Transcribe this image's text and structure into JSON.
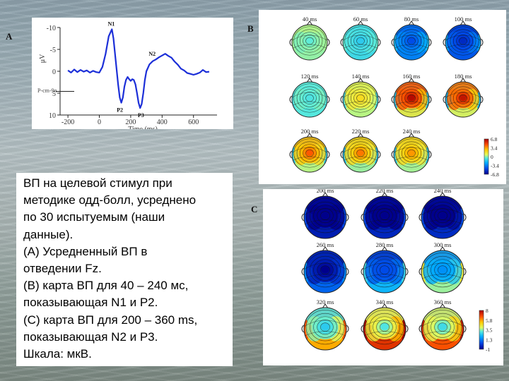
{
  "caption": {
    "lines": [
      "ВП на целевой стимул при",
      "методике одд-болл, усреднено",
      "по 30 испытуемым (наши",
      "данные).",
      "(А) Усредненный ВП в",
      "отведении Fz.",
      "(В) карта ВП для 40 – 240 мс,",
      "показывающая N1 и P2.",
      "(С) карта ВП для 200 – 360 ms,",
      "показывающая N2 и P3.",
      "Шкала: мкВ."
    ]
  },
  "panel_labels": {
    "a": "A",
    "b": "B",
    "c": "C"
  },
  "chart_data": [
    {
      "type": "line",
      "title": "",
      "xlabel": "Time (ms)",
      "ylabel": "μV",
      "xlim": [
        -250,
        750
      ],
      "ylim": [
        -10,
        10
      ],
      "y_inverted": true,
      "x_ticks": [
        "-200",
        "0",
        "200",
        "400",
        "600"
      ],
      "y_ticks": [
        "-10",
        "-5",
        "0",
        "5",
        "10"
      ],
      "annotations": [
        "N1",
        "N2",
        "P2",
        "P3"
      ],
      "baseline_label": "P-cm-9n",
      "series": [
        {
          "name": "Fz",
          "x": [
            -200,
            -180,
            -160,
            -140,
            -120,
            -100,
            -80,
            -60,
            -40,
            -20,
            0,
            20,
            40,
            60,
            80,
            90,
            100,
            110,
            120,
            130,
            140,
            150,
            160,
            170,
            180,
            190,
            200,
            210,
            220,
            230,
            240,
            250,
            260,
            270,
            280,
            290,
            300,
            320,
            340,
            360,
            380,
            400,
            420,
            440,
            460,
            480,
            500,
            520,
            540,
            560,
            580,
            600,
            620,
            640,
            660,
            680,
            700
          ],
          "y": [
            -0.2,
            0.3,
            -0.4,
            0.2,
            -0.3,
            0.1,
            -0.2,
            0.3,
            -0.1,
            0.2,
            0.3,
            -1,
            -4,
            -8,
            -9.6,
            -7.5,
            -4,
            -0.5,
            3,
            6,
            7.2,
            6,
            3.5,
            2,
            1.3,
            1.8,
            2.2,
            1.8,
            2,
            3,
            5,
            7.2,
            8.4,
            7.5,
            5,
            2,
            0,
            -1.6,
            -2.3,
            -2.7,
            -3.2,
            -3.6,
            -4,
            -3.5,
            -3.1,
            -2.2,
            -1.5,
            -0.6,
            -0.2,
            0.4,
            0.6,
            0.8,
            0.6,
            0.3,
            -0.3,
            0.2,
            0.1
          ]
        }
      ]
    },
    {
      "type": "heatmap",
      "title": "B",
      "maps": [
        {
          "label": "40 ms",
          "values": [
            -0.5,
            0.3,
            -0.2,
            0.1,
            0.0,
            0.2
          ]
        },
        {
          "label": "60 ms",
          "values": [
            -1.5,
            -1.0,
            -0.8,
            -0.6,
            -1.2,
            -0.4
          ]
        },
        {
          "label": "80 ms",
          "values": [
            -4.5,
            -4.0,
            -3.2,
            -2.6,
            -3.5,
            -1.8
          ]
        },
        {
          "label": "100 ms",
          "values": [
            -5.5,
            -5.0,
            -4.2,
            -3.6,
            -4.5,
            -2.5
          ]
        },
        {
          "label": "120 ms",
          "values": [
            -0.8,
            -0.5,
            -0.3,
            -0.2,
            -0.6,
            -0.9
          ]
        },
        {
          "label": "140 ms",
          "values": [
            2.0,
            1.2,
            1.5,
            0.8,
            0.5,
            -1.0
          ]
        },
        {
          "label": "160 ms",
          "values": [
            6.5,
            4.5,
            4.5,
            3.0,
            1.5,
            -1.5
          ]
        },
        {
          "label": "180 ms",
          "values": [
            6.2,
            4.0,
            4.2,
            2.5,
            1.0,
            -2.0
          ]
        },
        {
          "label": "200 ms",
          "values": [
            4.5,
            3.0,
            2.5,
            2.0,
            0.5,
            -1.5
          ]
        },
        {
          "label": "220 ms",
          "values": [
            4.0,
            2.5,
            2.0,
            1.5,
            0.2,
            -1.8
          ]
        },
        {
          "label": "240 ms",
          "values": [
            3.5,
            2.5,
            2.0,
            1.5,
            0.3,
            -1.5
          ]
        }
      ],
      "scale_ticks": [
        "6.8",
        "3.4",
        "0",
        "-3.4",
        "-6.8"
      ],
      "scale_range": [
        -6.8,
        6.8
      ]
    },
    {
      "type": "heatmap",
      "title": "C",
      "maps": [
        {
          "label": "200 ms",
          "values": [
            -3.5,
            -2.5,
            -2.0,
            -1.5,
            -0.5,
            0.5
          ]
        },
        {
          "label": "220 ms",
          "values": [
            -2.5,
            -2.0,
            -1.5,
            -1.0,
            -0.3,
            0.5
          ]
        },
        {
          "label": "240 ms",
          "values": [
            -2.2,
            -1.8,
            -1.2,
            -0.8,
            -0.2,
            0.6
          ]
        },
        {
          "label": "260 ms",
          "values": [
            -1.0,
            -0.5,
            -0.3,
            0.0,
            0.8,
            1.5
          ]
        },
        {
          "label": "280 ms",
          "values": [
            0.5,
            0.0,
            0.8,
            1.0,
            2.0,
            2.8
          ]
        },
        {
          "label": "300 ms",
          "values": [
            1.5,
            1.5,
            2.0,
            2.5,
            3.5,
            4.5
          ]
        },
        {
          "label": "320 ms",
          "values": [
            2.5,
            3.0,
            3.5,
            4.0,
            5.5,
            6.5
          ]
        },
        {
          "label": "340 ms",
          "values": [
            3.0,
            4.0,
            4.5,
            5.5,
            7.0,
            8.0
          ]
        },
        {
          "label": "360 ms",
          "values": [
            2.8,
            3.8,
            4.2,
            5.0,
            6.5,
            7.5
          ]
        }
      ],
      "scale_ticks": [
        "8",
        "5.8",
        "3.5",
        "1.3",
        "-1"
      ],
      "scale_range": [
        -1,
        8
      ]
    }
  ]
}
